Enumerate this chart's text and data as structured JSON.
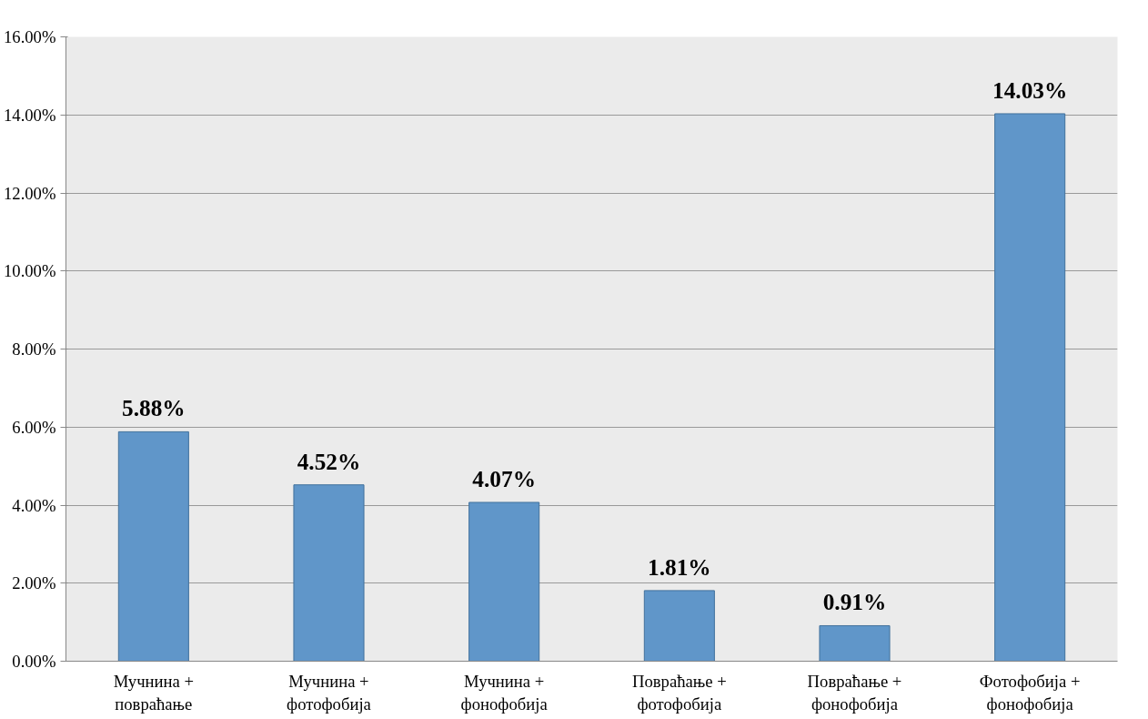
{
  "chart_data": {
    "type": "bar",
    "categories": [
      "Мучнина +\nповраћање",
      "Мучнина +\nфотофобија",
      "Мучнина +\nфонофобија",
      "Повраћање +\nфотофобија",
      "Повраћање +\nфонофобија",
      "Фотофобија +\nфонофобија"
    ],
    "values": [
      5.88,
      4.52,
      4.07,
      1.81,
      0.91,
      14.03
    ],
    "value_labels": [
      "5.88%",
      "4.52%",
      "4.07%",
      "1.81%",
      "0.91%",
      "14.03%"
    ],
    "color": "#6096c9",
    "ylim": [
      0,
      16
    ],
    "yticks": [
      {
        "value": 0,
        "label": "0.00%"
      },
      {
        "value": 2,
        "label": "2.00%"
      },
      {
        "value": 4,
        "label": "4.00%"
      },
      {
        "value": 6,
        "label": "6.00%"
      },
      {
        "value": 8,
        "label": "8.00%"
      },
      {
        "value": 10,
        "label": "10.00%"
      },
      {
        "value": 12,
        "label": "12.00%"
      },
      {
        "value": 14,
        "label": "14.00%"
      },
      {
        "value": 16,
        "label": "16.00%"
      }
    ],
    "grid": "y"
  }
}
